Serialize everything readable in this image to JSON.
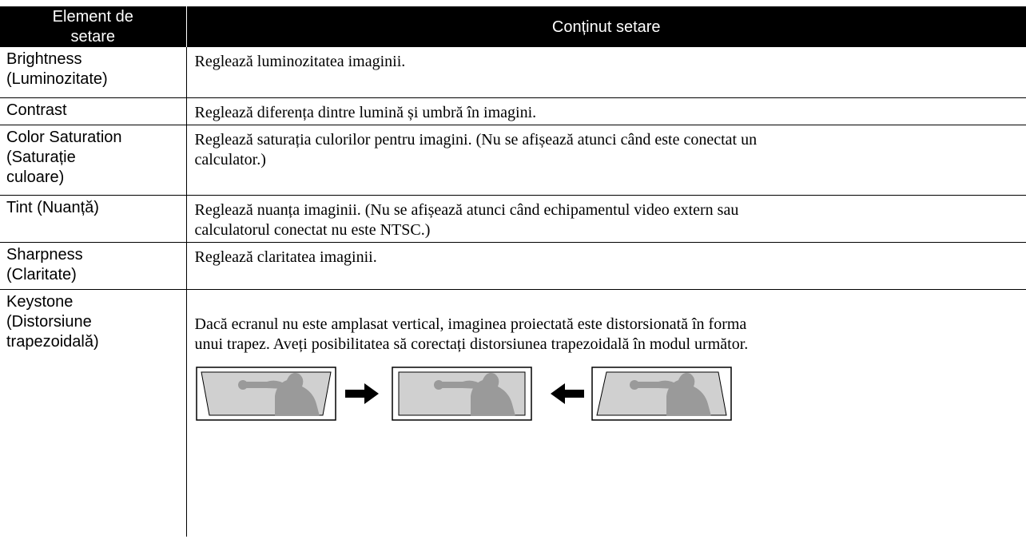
{
  "table": {
    "header": [
      "Element de\nsetare",
      "Conținut setare"
    ],
    "rows": [
      [
        "Brightness\n(Luminozitate)",
        "Reglează luminozitatea imaginii."
      ],
      [
        "Contrast",
        "Reglează diferența dintre lumină și umbră în imagini."
      ],
      [
        "Color Saturation\n(Saturație\nculoare)",
        "Reglează saturația culorilor pentru imagini. (Nu se afișează atunci când este conectat un\ncalculator.)"
      ],
      [
        "Tint (Nuanță)",
        "Reglează nuanța imaginii. (Nu se afișează atunci când echipamentul video extern sau\ncalculatorul conectat nu este NTSC.)"
      ],
      [
        "Sharpness\n(Claritate)",
        "Reglează claritatea imaginii."
      ],
      [
        "Keystone\n(Distorsiune\ntrapezoidală)",
        "Dacă ecranul nu este amplasat vertical, imaginea proiectată este distorsionată în forma\nunui trapez. Aveți posibilitatea să corectați distorsiunea trapezoidală în modul următor."
      ]
    ]
  }
}
